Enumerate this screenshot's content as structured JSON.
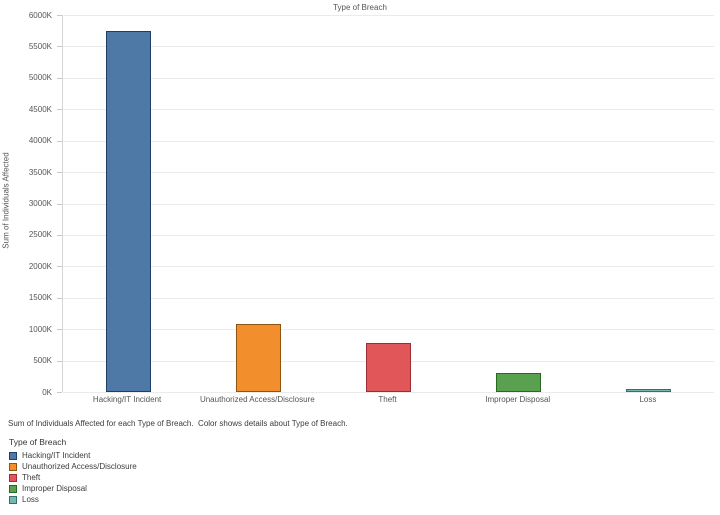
{
  "chart_title": "Type of Breach",
  "caption": "Sum of Individuals Affected for each Type of Breach.  Color shows details about Type of Breach.",
  "chart_data": {
    "type": "bar",
    "title": "Type of Breach",
    "categories": [
      "Hacking/IT Incident",
      "Unauthorized Access/Disclosure",
      "Theft",
      "Improper Disposal",
      "Loss"
    ],
    "values": [
      5740,
      1085,
      785,
      305,
      55
    ],
    "value_unit": "K (thousands of individuals)",
    "xlabel": "",
    "ylabel": "Sum of Individuals Affected",
    "ylim": [
      0,
      6000
    ],
    "ytick_step": 500,
    "ytick_suffix": "K",
    "grid": "horizontal",
    "legend_position": "bottom-left",
    "colors": [
      {
        "fill": "#4e79a7",
        "border": "#1c3f68"
      },
      {
        "fill": "#f28e2b",
        "border": "#8f5410"
      },
      {
        "fill": "#e15759",
        "border": "#9d2d32"
      },
      {
        "fill": "#59a14f",
        "border": "#26691f"
      },
      {
        "fill": "#76b7b2",
        "border": "#34706a"
      }
    ]
  },
  "legend": {
    "title": "Type of Breach",
    "items": [
      {
        "label": "Hacking/IT Incident",
        "fill": "#4e79a7",
        "border": "#1c3f68"
      },
      {
        "label": "Unauthorized Access/Disclosure",
        "fill": "#f28e2b",
        "border": "#8f5410"
      },
      {
        "label": "Theft",
        "fill": "#e15759",
        "border": "#9d2d32"
      },
      {
        "label": "Improper Disposal",
        "fill": "#59a14f",
        "border": "#26691f"
      },
      {
        "label": "Loss",
        "fill": "#76b7b2",
        "border": "#34706a"
      }
    ]
  }
}
